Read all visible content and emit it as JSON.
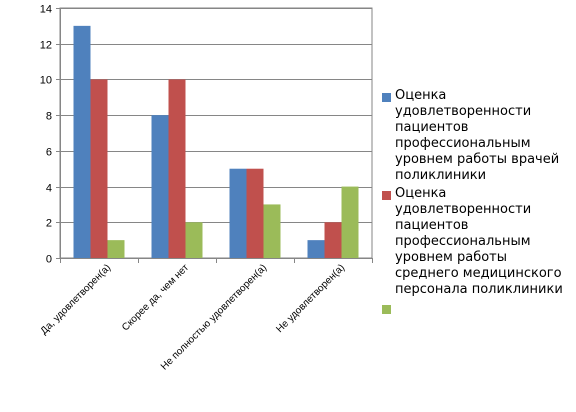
{
  "chart_data": {
    "type": "bar",
    "categories": [
      "Да, удовлетворен(а)",
      "Скорее да, чем нет",
      "Не полностью удовлетворен(а)",
      "Не удовлетворен(а)"
    ],
    "series": [
      {
        "name": "Оценка удовлетворенности пациентов профессиональным уровнем работы врачей поликлиники",
        "color": "#4F81BD",
        "values": [
          13,
          8,
          5,
          1
        ]
      },
      {
        "name": "Оценка удовлетворенности пациентов профессиональным уровнем работы среднего медицинского персонала поликлиники",
        "color": "#C0504D",
        "values": [
          10,
          10,
          5,
          2
        ]
      },
      {
        "name": "",
        "color": "#9BBB59",
        "values": [
          1,
          2,
          3,
          4
        ]
      }
    ],
    "yticks": [
      "0",
      "2",
      "4",
      "6",
      "8",
      "10",
      "12",
      "14"
    ],
    "ylim": [
      0,
      14
    ],
    "grid": true,
    "legend_position": "right"
  }
}
